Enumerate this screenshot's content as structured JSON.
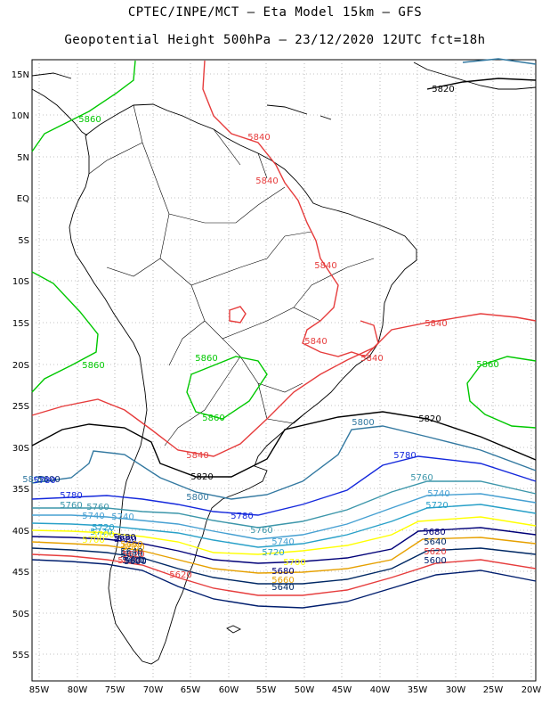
{
  "title_line1": "CPTEC/INPE/MCT –  Eta Model 15km – GFS",
  "title_line2": "Geopotential Height 500hPa – 23/12/2020 12UTC fct=18h",
  "lat_labels": [
    "15N",
    "10N",
    "5N",
    "EQ",
    "5S",
    "10S",
    "15S",
    "20S",
    "25S",
    "30S",
    "35S",
    "40S",
    "45S",
    "50S",
    "55S"
  ],
  "lon_labels": [
    "85W",
    "80W",
    "75W",
    "70W",
    "65W",
    "60W",
    "55W",
    "50W",
    "45W",
    "40W",
    "35W",
    "30W",
    "25W",
    "20W"
  ],
  "colors": {
    "5600": "#001e6e",
    "5620": "#e63c3c",
    "5640": "#002864",
    "5660": "#e6a000",
    "5680": "#000078",
    "5700": "#ffff00",
    "5720": "#28a0c8",
    "5740": "#46a0d2",
    "5760": "#3c96aa",
    "5780": "#1428dc",
    "5800": "#3278a0",
    "5820": "#000000",
    "5840": "#e63c3c",
    "5860": "#00c800",
    "coast": "#000000",
    "grid": "#888888"
  },
  "contour_labels": [
    {
      "text": "5820",
      "color": "5820"
    },
    {
      "text": "5860",
      "color": "5860"
    },
    {
      "text": "5840",
      "color": "5840"
    },
    {
      "text": "5840",
      "color": "5840"
    },
    {
      "text": "5840",
      "color": "5840"
    },
    {
      "text": "5840",
      "color": "5840"
    },
    {
      "text": "5840",
      "color": "5840"
    },
    {
      "text": "5840",
      "color": "5840"
    },
    {
      "text": "5860",
      "color": "5860"
    },
    {
      "text": "5860",
      "color": "5860"
    },
    {
      "text": "5860",
      "color": "5860"
    },
    {
      "text": "5860",
      "color": "5860"
    },
    {
      "text": "5840",
      "color": "5840"
    },
    {
      "text": "5820",
      "color": "5820"
    },
    {
      "text": "5800",
      "color": "5800"
    },
    {
      "text": "5780",
      "color": "5780"
    },
    {
      "text": "5760",
      "color": "5760"
    },
    {
      "text": "5740",
      "color": "5740"
    },
    {
      "text": "5720",
      "color": "5720"
    },
    {
      "text": "5680",
      "color": "5680"
    },
    {
      "text": "5640",
      "color": "5640"
    },
    {
      "text": "5620",
      "color": "5620"
    },
    {
      "text": "5600",
      "color": "5600"
    },
    {
      "text": "5820",
      "color": "5820"
    },
    {
      "text": "5800",
      "color": "5800"
    },
    {
      "text": "5780",
      "color": "5780"
    },
    {
      "text": "5760",
      "color": "5760"
    },
    {
      "text": "5740",
      "color": "5740"
    },
    {
      "text": "5720",
      "color": "5720"
    },
    {
      "text": "5700",
      "color": "5700"
    },
    {
      "text": "5680",
      "color": "5680"
    },
    {
      "text": "5660",
      "color": "5660"
    },
    {
      "text": "5640",
      "color": "5640"
    },
    {
      "text": "5600",
      "color": "5600"
    },
    {
      "text": "5620",
      "color": "5620"
    },
    {
      "text": "5600",
      "color": "5600"
    },
    {
      "text": "5780",
      "color": "5780"
    },
    {
      "text": "5760",
      "color": "5760"
    },
    {
      "text": "5740",
      "color": "5740"
    },
    {
      "text": "5720",
      "color": "5720"
    },
    {
      "text": "5700",
      "color": "5700"
    },
    {
      "text": "5680",
      "color": "5680"
    },
    {
      "text": "5660",
      "color": "5660"
    },
    {
      "text": "5640",
      "color": "5640"
    },
    {
      "text": "5620",
      "color": "5620"
    },
    {
      "text": "5600",
      "color": "5600"
    },
    {
      "text": "5800",
      "color": "5800"
    },
    {
      "text": "5780",
      "color": "5780"
    },
    {
      "text": "5760",
      "color": "5760"
    },
    {
      "text": "5740",
      "color": "5740"
    },
    {
      "text": "5720",
      "color": "5720"
    },
    {
      "text": "5700",
      "color": "5700"
    },
    {
      "text": "5680",
      "color": "5680"
    },
    {
      "text": "5660",
      "color": "5660"
    },
    {
      "text": "5640",
      "color": "5640"
    },
    {
      "text": "5620",
      "color": "5620"
    },
    {
      "text": "5600",
      "color": "5600"
    }
  ]
}
